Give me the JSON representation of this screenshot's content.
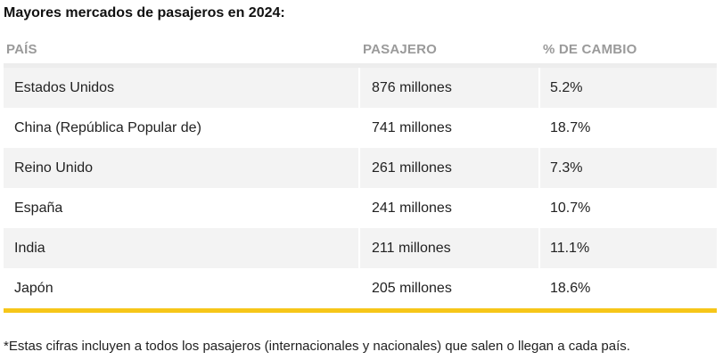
{
  "title": "Mayores mercados de pasajeros en 2024:",
  "table": {
    "headers": [
      "PAÍS",
      "PASAJERO",
      "% DE CAMBIO"
    ],
    "rows": [
      [
        "Estados Unidos",
        "876 millones",
        "5.2%"
      ],
      [
        "China (República Popular de)",
        "741 millones",
        "18.7%"
      ],
      [
        "Reino Unido",
        "261 millones",
        "7.3%"
      ],
      [
        "España",
        "241 millones",
        "10.7%"
      ],
      [
        "India",
        "211 millones",
        "11.1%"
      ],
      [
        "Japón",
        "205 millones",
        "18.6%"
      ]
    ]
  },
  "footnote": "*Estas cifras incluyen a todos los pasajeros (internacionales y nacionales) que salen o llegan a cada país.",
  "colors": {
    "accent": "#f6c619",
    "row_shade": "#f3f3f3",
    "header_text": "#9a9a9a"
  }
}
